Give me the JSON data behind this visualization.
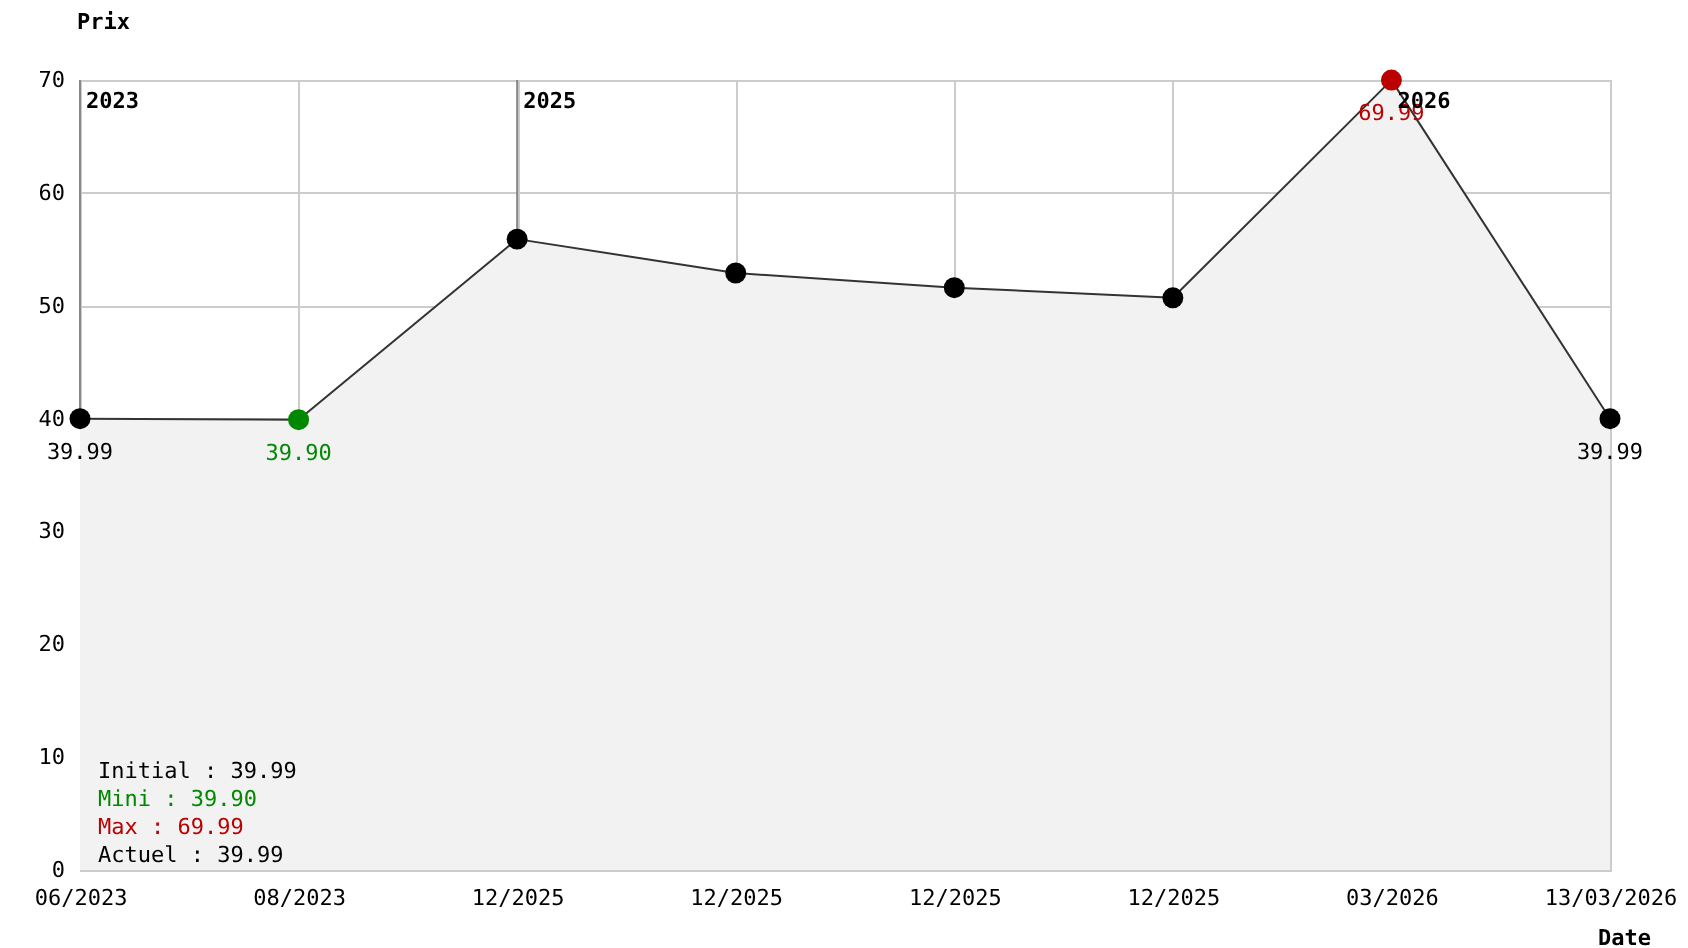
{
  "chart_data": {
    "type": "area",
    "xlabel": "Date",
    "ylabel": "Prix",
    "categories": [
      "06/2023",
      "08/2023",
      "12/2025",
      "12/2025",
      "12/2025",
      "12/2025",
      "03/2026",
      "13/03/2026"
    ],
    "values": [
      39.99,
      39.9,
      55.9,
      52.9,
      51.6,
      50.7,
      69.99,
      39.99
    ],
    "colors": [
      "#000000",
      "#008800",
      "#000000",
      "#000000",
      "#000000",
      "#000000",
      "#bb0000",
      "#000000"
    ],
    "value_labels": [
      "39.99",
      "39.90",
      null,
      null,
      null,
      null,
      "69.99",
      "39.99"
    ],
    "ylim": [
      0,
      70
    ],
    "yticks": [
      0,
      10,
      20,
      30,
      40,
      50,
      60,
      70
    ],
    "grid": true,
    "marker": "circle",
    "ref_lines": [
      {
        "axis": "x",
        "value": "06/2023",
        "label": "2023"
      },
      {
        "axis": "x",
        "value": "12/2025",
        "label": "2025"
      }
    ],
    "annotations": [
      {
        "text": "2026",
        "x": "03/2026",
        "y": 70
      },
      "Initial : 39.99",
      "Mini : 39.90",
      "Max : 69.99",
      "Actuel : 39.99"
    ]
  }
}
